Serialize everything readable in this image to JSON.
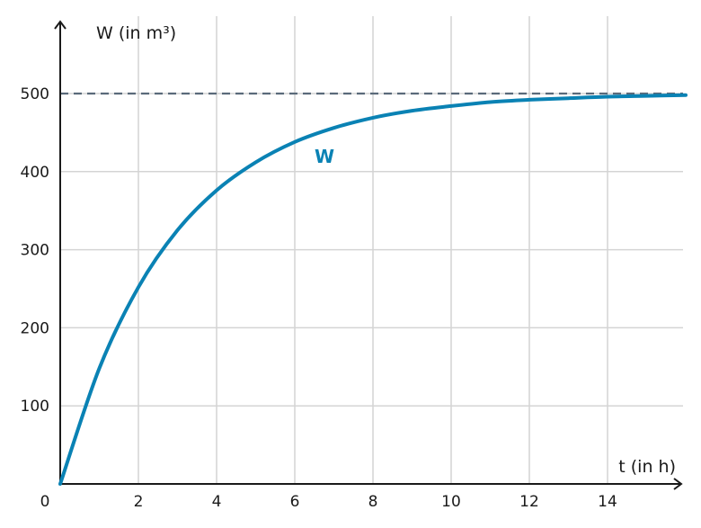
{
  "chart_data": {
    "type": "line",
    "xlabel": "t (in h)",
    "ylabel": "W (in m³)",
    "xlim": [
      0,
      16
    ],
    "ylim": [
      0,
      500
    ],
    "x_ticks": [
      "2",
      "4",
      "6",
      "8",
      "10",
      "12",
      "14"
    ],
    "y_ticks": [
      "100",
      "200",
      "300",
      "400",
      "500"
    ],
    "origin_label": "0",
    "grid": true,
    "series": [
      {
        "name": "W",
        "color": "#0a82b4",
        "x": [
          0,
          1,
          2,
          3,
          4,
          5,
          6,
          7,
          8,
          9,
          10,
          11,
          12,
          13,
          14,
          15,
          16
        ],
        "y": [
          0,
          148,
          252,
          325,
          376,
          412,
          438,
          456,
          469,
          478,
          484,
          489,
          492,
          494,
          496,
          497,
          498
        ]
      }
    ],
    "asymptote": {
      "y": 500,
      "color": "#5a6a7a",
      "style": "dashed"
    }
  }
}
